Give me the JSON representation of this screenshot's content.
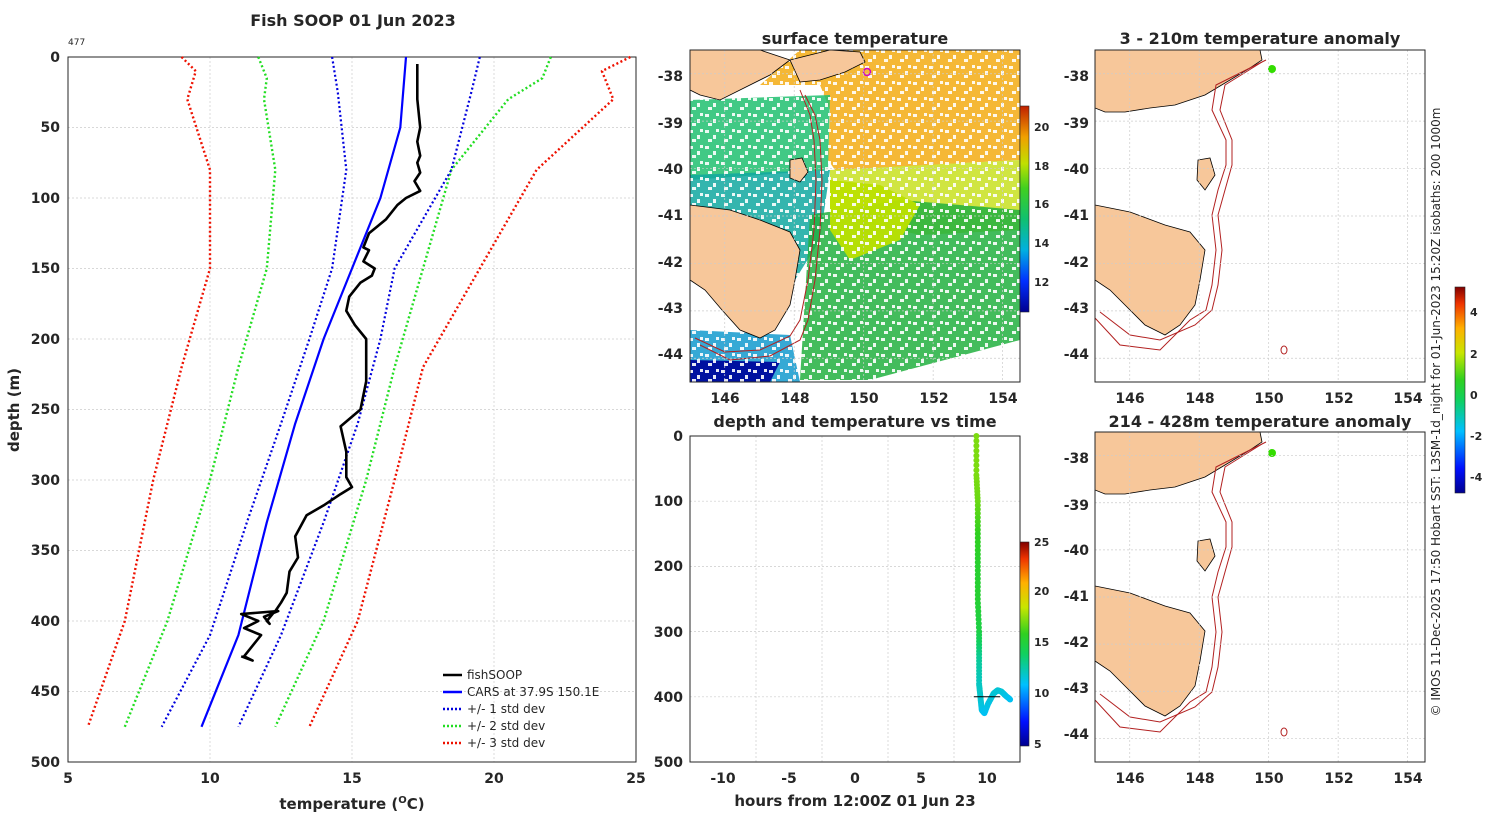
{
  "colors": {
    "fish": "#000000",
    "cars": "#0000ff",
    "std1": "#0000dd",
    "std2": "#22dd22",
    "std3": "#ee1100",
    "land": "#f7c79a",
    "isobath": "#b22020",
    "grid": "#cccccc"
  },
  "chart_data": [
    {
      "type": "line",
      "id": "profile",
      "title": "Fish SOOP 01 Jun 2023",
      "corner_label": "477",
      "xlabel": "temperature (",
      "xlabel_unit": "O",
      "xlabel_end": "C)",
      "ylabel": "depth (m)",
      "xlim": [
        5,
        25
      ],
      "ylim": [
        500,
        0
      ],
      "xticks": [
        "5",
        "10",
        "15",
        "20",
        "25"
      ],
      "yticks": [
        "0",
        "50",
        "100",
        "150",
        "200",
        "250",
        "300",
        "350",
        "400",
        "450",
        "500"
      ],
      "legend": [
        "fishSOOP",
        "CARS at 37.9S 150.1E",
        "+/- 1 std dev",
        "+/- 2 std dev",
        "+/- 3 std dev"
      ],
      "series": [
        {
          "name": "fishSOOP",
          "style": "fish",
          "x": [
            17.3,
            17.3,
            17.4,
            17.3,
            17.4,
            17.3,
            17.4,
            17.2,
            17.4,
            16.9,
            16.6,
            16.2,
            15.9,
            15.6,
            15.4,
            15.6,
            15.4,
            15.8,
            15.7,
            15.3,
            14.9,
            14.8,
            15.1,
            15.5,
            15.5,
            15.5,
            15.3,
            14.6,
            14.8,
            14.8,
            15.0,
            14.6,
            14.0,
            13.4,
            13.0,
            13.1,
            12.8,
            12.7,
            12.5,
            12.3,
            12.2,
            12.0,
            12.1,
            11.9,
            12.4,
            11.1,
            11.7,
            11.2,
            11.8,
            11.2,
            11.5,
            11.1
          ],
          "y": [
            5,
            30,
            50,
            60,
            70,
            75,
            82,
            88,
            95,
            100,
            105,
            115,
            120,
            125,
            135,
            137,
            145,
            150,
            155,
            160,
            170,
            180,
            190,
            200,
            215,
            230,
            250,
            262,
            280,
            298,
            305,
            310,
            318,
            325,
            340,
            355,
            365,
            380,
            387,
            393,
            395,
            400,
            402,
            397,
            393,
            395,
            400,
            405,
            410,
            425,
            428,
            425
          ]
        },
        {
          "name": "CARS at 37.9S 150.1E",
          "style": "cars",
          "x": [
            16.9,
            16.7,
            16.0,
            15.0,
            14.0,
            13.0,
            12.0,
            11.0,
            9.7
          ],
          "y": [
            0,
            50,
            100,
            150,
            200,
            260,
            330,
            410,
            475
          ]
        },
        {
          "name": "+/- 1 std dev",
          "style": "std1",
          "x": [
            14.3,
            14.5,
            14.8,
            14.3,
            13.5,
            12.5,
            11.3,
            10.0,
            8.3
          ],
          "y": [
            0,
            25,
            80,
            150,
            200,
            260,
            330,
            410,
            475
          ]
        },
        {
          "name": "+/- 1 std dev",
          "style": "std1",
          "x": [
            19.5,
            19.2,
            18.5,
            16.5,
            16.0,
            15.2,
            14.0,
            12.5,
            11.0
          ],
          "y": [
            0,
            25,
            80,
            150,
            200,
            260,
            330,
            410,
            475
          ]
        },
        {
          "name": "+/- 2 std dev",
          "style": "std2",
          "x": [
            11.7,
            12.0,
            11.9,
            12.3,
            12.0,
            11.0,
            10.0,
            8.5,
            7.0
          ],
          "y": [
            0,
            15,
            30,
            80,
            150,
            220,
            300,
            400,
            475
          ]
        },
        {
          "name": "+/- 2 std dev",
          "style": "std2",
          "x": [
            22.0,
            21.7,
            20.5,
            18.5,
            17.5,
            16.5,
            15.5,
            14.0,
            12.3
          ],
          "y": [
            0,
            15,
            30,
            80,
            150,
            220,
            300,
            400,
            475
          ]
        },
        {
          "name": "+/- 3 std dev",
          "style": "std3",
          "x": [
            9.0,
            9.5,
            9.2,
            10.0,
            10.0,
            9.0,
            8.0,
            7.0,
            5.7
          ],
          "y": [
            0,
            10,
            30,
            80,
            150,
            220,
            300,
            400,
            475
          ]
        },
        {
          "name": "+/- 3 std dev",
          "style": "std3",
          "x": [
            24.8,
            23.8,
            24.2,
            21.5,
            19.5,
            17.5,
            16.5,
            15.2,
            13.5
          ],
          "y": [
            0,
            10,
            30,
            80,
            150,
            220,
            300,
            400,
            475
          ]
        }
      ]
    },
    {
      "type": "heatmap",
      "id": "sst",
      "title": "surface temperature",
      "xlim": [
        145,
        154.5
      ],
      "ylim": [
        -44.5,
        -37.5
      ],
      "xticks": [
        "146",
        "148",
        "150",
        "152",
        "154"
      ],
      "yticks": [
        "-38",
        "-39",
        "-40",
        "-41",
        "-42",
        "-43",
        "-44"
      ],
      "colorbar_ticks": [
        "12",
        "14",
        "16",
        "18",
        "20"
      ],
      "colorbar_range": [
        11,
        21
      ]
    },
    {
      "type": "scatter",
      "id": "depth_time",
      "title": "depth and temperature vs time",
      "xlabel": "hours from 12:00Z 01 Jun 23",
      "xlim": [
        -12.5,
        12.5
      ],
      "ylim": [
        500,
        0
      ],
      "xticks": [
        "-10",
        "-5",
        "0",
        "5",
        "10"
      ],
      "yticks": [
        "0",
        "100",
        "200",
        "300",
        "400",
        "500"
      ],
      "colorbar_ticks": [
        "5",
        "10",
        "15",
        "20",
        "25"
      ],
      "colorbar_range": [
        5,
        25
      ],
      "x": [
        9.2,
        9.2,
        9.3,
        9.3,
        9.3,
        9.3,
        9.4,
        9.4,
        9.4,
        9.5,
        9.6,
        9.8,
        10.1,
        10.5,
        10.8,
        11.1,
        11.4,
        11.8
      ],
      "y": [
        0,
        60,
        100,
        150,
        200,
        250,
        300,
        340,
        380,
        400,
        420,
        425,
        410,
        395,
        390,
        392,
        398,
        405
      ],
      "values": [
        17.3,
        17.3,
        17.0,
        16.0,
        15.5,
        15.4,
        14.8,
        13.0,
        12.2,
        12.0,
        11.5,
        11.2,
        11.5,
        11.8,
        11.8,
        11.8,
        11.5,
        11.2
      ]
    },
    {
      "type": "heatmap",
      "id": "anom1",
      "title": "3 - 210m temperature anomaly",
      "xlim": [
        145,
        154.5
      ],
      "ylim": [
        -44.5,
        -37.5
      ],
      "xticks": [
        "146",
        "148",
        "150",
        "152",
        "154"
      ],
      "yticks": [
        "-38",
        "-39",
        "-40",
        "-41",
        "-42",
        "-43",
        "-44"
      ],
      "point": {
        "lon": 150.1,
        "lat": -37.9,
        "anomaly": 0.3
      }
    },
    {
      "type": "heatmap",
      "id": "anom2",
      "title": "214 - 428m temperature anomaly",
      "xlim": [
        145,
        154.5
      ],
      "ylim": [
        -44.5,
        -37.5
      ],
      "xticks": [
        "146",
        "148",
        "150",
        "152",
        "154"
      ],
      "yticks": [
        "-38",
        "-39",
        "-40",
        "-41",
        "-42",
        "-43",
        "-44"
      ],
      "point": {
        "lon": 150.1,
        "lat": -37.9,
        "anomaly": 0.3
      },
      "colorbar_ticks": [
        "-4",
        "-2",
        "0",
        "2",
        "4"
      ],
      "colorbar_range": [
        -5,
        5
      ]
    }
  ],
  "side_caption": "© IMOS 11-Dec-2025 17:50 Hobart SST: L3SM-1d_night for 01-Jun-2023 15:20Z isobaths: 200  1000m"
}
